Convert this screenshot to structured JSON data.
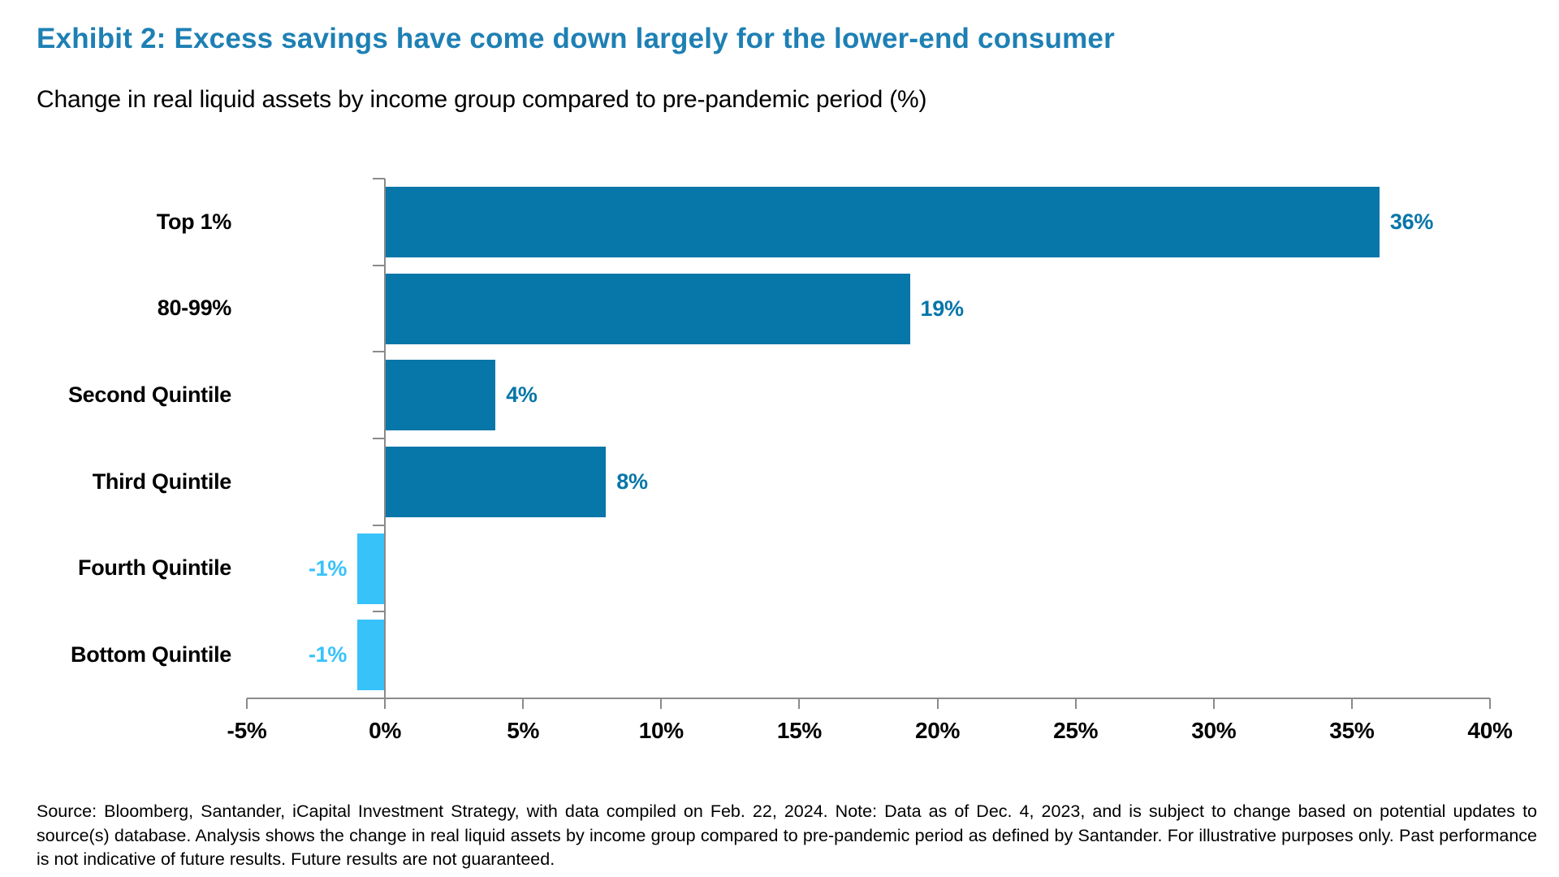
{
  "page": {
    "title": "Exhibit 2: Excess savings have come down largely for the lower-end consumer",
    "title_color": "#1E80B4",
    "subtitle": "Change in real liquid assets by income group compared to pre-pandemic period (%)",
    "footer": "Source: Bloomberg, Santander, iCapital Investment Strategy, with data compiled on Feb. 22, 2024. Note: Data as of Dec. 4, 2023, and is subject to change based on potential updates to source(s) database. Analysis shows the change in real liquid assets by income group compared to pre-pandemic period as defined by Santander. For illustrative purposes only. Past performance is not indicative of future results. Future results are not guaranteed."
  },
  "chart_data": {
    "type": "bar",
    "orientation": "horizontal",
    "title": "Exhibit 2: Excess savings have come down largely for the lower-end consumer",
    "subtitle": "Change in real liquid assets by income group compared to pre-pandemic period (%)",
    "categories": [
      "Top 1%",
      "80-99%",
      "Second Quintile",
      "Third Quintile",
      "Fourth Quintile",
      "Bottom Quintile"
    ],
    "values": [
      36,
      19,
      4,
      8,
      -1,
      -1
    ],
    "value_labels": [
      "36%",
      "19%",
      "4%",
      "8%",
      "-1%",
      "-1%"
    ],
    "xlabel": "",
    "ylabel": "",
    "xlim": [
      -5,
      40
    ],
    "x_ticks": [
      {
        "value": -5,
        "label": "-5%"
      },
      {
        "value": 0,
        "label": "0%"
      },
      {
        "value": 5,
        "label": "5%"
      },
      {
        "value": 10,
        "label": "10%"
      },
      {
        "value": 15,
        "label": "15%"
      },
      {
        "value": 20,
        "label": "20%"
      },
      {
        "value": 25,
        "label": "25%"
      },
      {
        "value": 30,
        "label": "30%"
      },
      {
        "value": 35,
        "label": "35%"
      },
      {
        "value": 40,
        "label": "40%"
      }
    ],
    "grid": false,
    "legend": null,
    "colors": {
      "positive_bar": "#0776A8",
      "negative_bar": "#38C2FA",
      "positive_value_label": "#0776A8",
      "negative_value_label": "#38C2FA",
      "axis": "#8A8A8A"
    }
  }
}
